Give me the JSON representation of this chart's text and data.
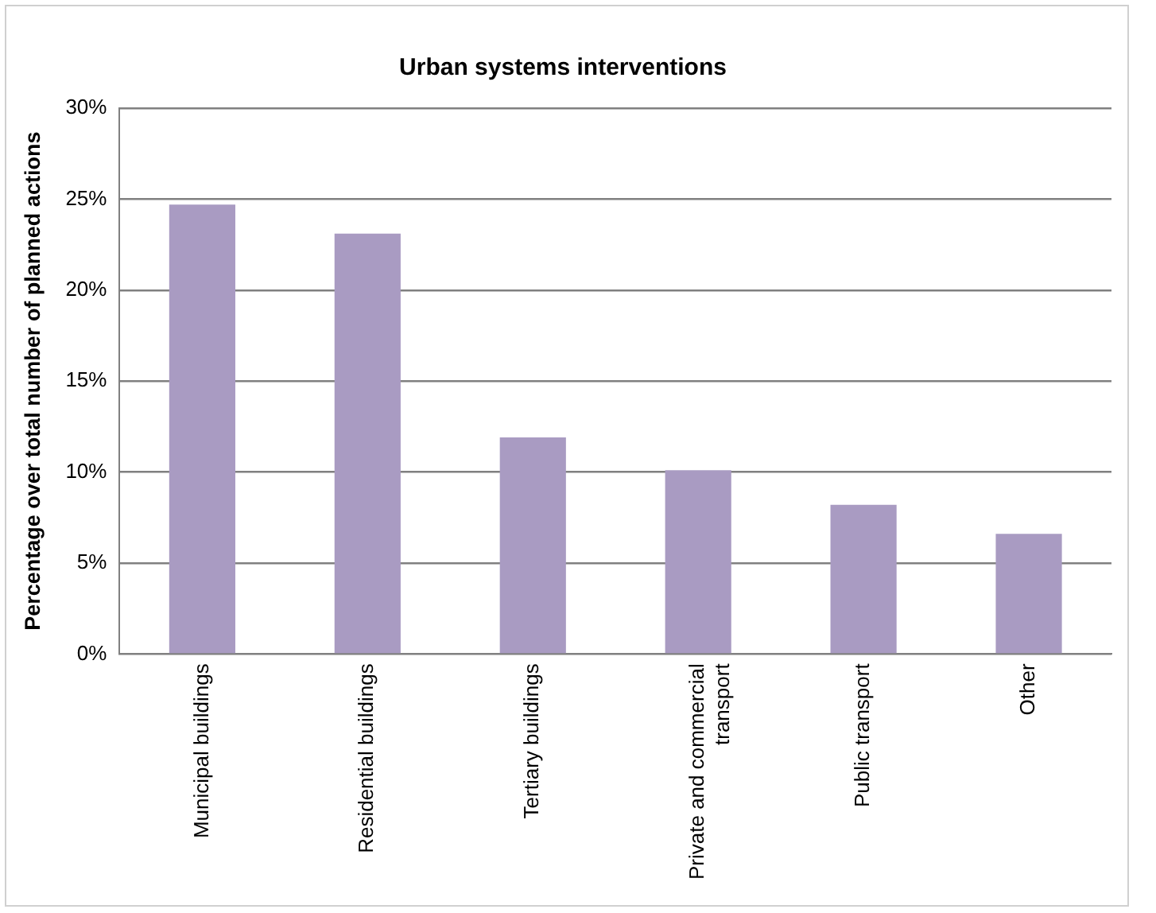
{
  "chart_data": {
    "type": "bar",
    "title": "Urban systems interventions",
    "ylabel": "Percentage over total number of planned actions",
    "categories": [
      "Municipal buildings",
      "Residential buildings",
      "Tertiary buildings",
      "Private and commercial transport",
      "Public transport",
      "Other"
    ],
    "values": [
      24.7,
      23.1,
      11.9,
      10.1,
      8.2,
      6.6
    ],
    "color": "#a99bc2",
    "ylim": [
      0,
      30
    ],
    "yticks": [
      {
        "value": 0,
        "label": "0%"
      },
      {
        "value": 5,
        "label": "5%"
      },
      {
        "value": 10,
        "label": "10%"
      },
      {
        "value": 15,
        "label": "15%"
      },
      {
        "value": 20,
        "label": "20%"
      },
      {
        "value": 25,
        "label": "25%"
      },
      {
        "value": 30,
        "label": "30%"
      }
    ],
    "grid": "y",
    "legend": false
  }
}
